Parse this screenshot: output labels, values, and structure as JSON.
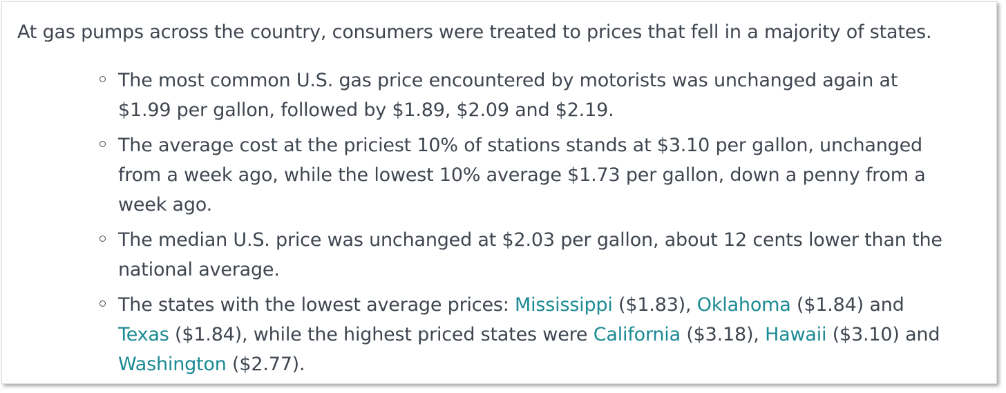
{
  "intro": "At gas pumps across the country, consumers were treated to prices that fell in a majority of states.",
  "bullets": [
    {
      "lines": [
        "The most common U.S. gas price encountered by motorists was unchanged again at",
        "$1.99 per gallon, followed by $1.89, $2.09 and $2.19."
      ]
    },
    {
      "lines": [
        "The average cost at the priciest 10% of stations stands at $3.10 per gallon, unchanged",
        "from a week ago, while the lowest 10% average $1.73 per gallon, down a penny from a",
        "week ago."
      ]
    },
    {
      "lines": [
        "The median U.S. price was unchanged at $2.03 per gallon, about 12 cents lower than the",
        "national average."
      ]
    },
    {
      "segments": {
        "s1": "The states with the lowest average prices: ",
        "link1": "Mississippi",
        "s2": " ($1.83), ",
        "link2": "Oklahoma",
        "s3": " ($1.84) and",
        "link3": "Texas",
        "s4": " ($1.84), while the highest priced states were ",
        "link4": "California",
        "s5": " ($3.18), ",
        "link5": "Hawaii",
        "s6": " ($3.10) and",
        "link6": "Washington",
        "s7": " ($2.77)."
      }
    }
  ],
  "colors": {
    "text": "#3f4650",
    "link": "#1a8a93"
  }
}
